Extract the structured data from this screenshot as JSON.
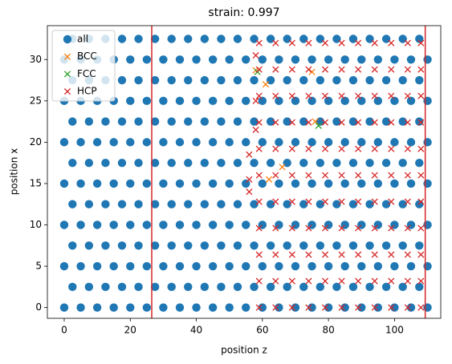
{
  "chart_data": {
    "type": "scatter",
    "title": "strain: 0.997",
    "x_label": "position z",
    "y_label": "position x",
    "xlim": [
      -5.1,
      114
    ],
    "ylim": [
      -1.3,
      34.1
    ],
    "xticks": [
      0,
      20,
      40,
      60,
      80,
      100
    ],
    "yticks": [
      0,
      5,
      10,
      15,
      20,
      25,
      30
    ],
    "legend": "upper left",
    "vlines": [
      26.5,
      109.3
    ],
    "vline_color": "#d62728",
    "series": [
      {
        "name": "all",
        "marker": "o",
        "color": "#1f77b4",
        "x": [
          0,
          5,
          10,
          15,
          20,
          25,
          30,
          35,
          40,
          45,
          50,
          55,
          60,
          65,
          70,
          75,
          80,
          85,
          90,
          95,
          100,
          105,
          110,
          2.5,
          7.5,
          12.5,
          17.5,
          22.5,
          27.5,
          32.5,
          37.5,
          42.5,
          47.5,
          52.5,
          57.5,
          62.5,
          67.5,
          72.5,
          77.5,
          82.5,
          87.5,
          92.5,
          97.5,
          102.5,
          107.5,
          0,
          5,
          10,
          15,
          20,
          25,
          30,
          35,
          40,
          45,
          50,
          55,
          60,
          65,
          70,
          75,
          80,
          85,
          90,
          95,
          100,
          105,
          110,
          2.5,
          7.5,
          12.5,
          17.5,
          22.5,
          27.5,
          32.5,
          37.5,
          42.5,
          47.5,
          52.5,
          57.5,
          62.5,
          67.5,
          72.5,
          77.5,
          82.5,
          87.5,
          92.5,
          97.5,
          102.5,
          107.5,
          0,
          5,
          10,
          15,
          20,
          25,
          30,
          35,
          40,
          45,
          50,
          55,
          60,
          65,
          70,
          75,
          80,
          85,
          90,
          95,
          100,
          105,
          110,
          2.5,
          7.5,
          12.5,
          17.5,
          22.5,
          27.5,
          32.5,
          37.5,
          42.5,
          47.5,
          52.5,
          57.5,
          62.5,
          67.5,
          72.5,
          77.5,
          82.5,
          87.5,
          92.5,
          97.5,
          102.5,
          107.5,
          0,
          5,
          10,
          15,
          20,
          25,
          30,
          35,
          40,
          45,
          50,
          55,
          60,
          65,
          70,
          75,
          80,
          85,
          90,
          95,
          100,
          105,
          110,
          2.5,
          7.5,
          12.5,
          17.5,
          22.5,
          27.5,
          32.5,
          37.5,
          42.5,
          47.5,
          52.5,
          57.5,
          62.5,
          67.5,
          72.5,
          77.5,
          82.5,
          87.5,
          92.5,
          97.5,
          102.5,
          107.5,
          0,
          5,
          10,
          15,
          20,
          25,
          30,
          35,
          40,
          45,
          50,
          55,
          60,
          65,
          70,
          75,
          80,
          85,
          90,
          95,
          100,
          105,
          110,
          2.5,
          7.5,
          12.5,
          17.5,
          22.5,
          27.5,
          32.5,
          37.5,
          42.5,
          47.5,
          52.5,
          57.5,
          62.5,
          67.5,
          72.5,
          77.5,
          82.5,
          87.5,
          92.5,
          97.5,
          102.5,
          107.5,
          0,
          5,
          10,
          15,
          20,
          25,
          30,
          35,
          40,
          45,
          50,
          55,
          60,
          65,
          70,
          75,
          80,
          85,
          90,
          95,
          100,
          105,
          110,
          2.5,
          7.5,
          12.5,
          17.5,
          22.5,
          27.5,
          32.5,
          37.5,
          42.5,
          47.5,
          52.5,
          57.5,
          62.5,
          67.5,
          72.5,
          77.5,
          82.5,
          87.5,
          92.5,
          97.5,
          102.5,
          107.5,
          0,
          5,
          10,
          15,
          20,
          25,
          30,
          35,
          40,
          45,
          50,
          55,
          60,
          65,
          70,
          75,
          80,
          85,
          90,
          95,
          100,
          105,
          110,
          2.5,
          7.5,
          12.5,
          17.5,
          22.5,
          27.5,
          32.5,
          37.5,
          42.5,
          47.5,
          52.5,
          57.5,
          62.5,
          67.5,
          72.5,
          77.5,
          82.5,
          87.5,
          92.5,
          97.5,
          102.5,
          107.5
        ],
        "values": [
          0,
          0,
          0,
          0,
          0,
          0,
          0,
          0,
          0,
          0,
          0,
          0,
          0,
          0,
          0,
          0,
          0,
          0,
          0,
          0,
          0,
          0,
          0,
          2.5,
          2.5,
          2.5,
          2.5,
          2.5,
          2.5,
          2.5,
          2.5,
          2.5,
          2.5,
          2.5,
          2.5,
          2.5,
          2.5,
          2.5,
          2.5,
          2.5,
          2.5,
          2.5,
          2.5,
          2.5,
          2.5,
          5,
          5,
          5,
          5,
          5,
          5,
          5,
          5,
          5,
          5,
          5,
          5,
          5,
          5,
          5,
          5,
          5,
          5,
          5,
          5,
          5,
          5,
          5,
          7.5,
          7.5,
          7.5,
          7.5,
          7.5,
          7.5,
          7.5,
          7.5,
          7.5,
          7.5,
          7.5,
          7.5,
          7.5,
          7.5,
          7.5,
          7.5,
          7.5,
          7.5,
          7.5,
          7.5,
          7.5,
          7.5,
          10,
          10,
          10,
          10,
          10,
          10,
          10,
          10,
          10,
          10,
          10,
          10,
          10,
          10,
          10,
          10,
          10,
          10,
          10,
          10,
          10,
          10,
          10,
          12.5,
          12.5,
          12.5,
          12.5,
          12.5,
          12.5,
          12.5,
          12.5,
          12.5,
          12.5,
          12.5,
          12.5,
          12.5,
          12.5,
          12.5,
          12.5,
          12.5,
          12.5,
          12.5,
          12.5,
          12.5,
          12.5,
          15,
          15,
          15,
          15,
          15,
          15,
          15,
          15,
          15,
          15,
          15,
          15,
          15,
          15,
          15,
          15,
          15,
          15,
          15,
          15,
          15,
          15,
          15,
          17.5,
          17.5,
          17.5,
          17.5,
          17.5,
          17.5,
          17.5,
          17.5,
          17.5,
          17.5,
          17.5,
          17.5,
          17.5,
          17.5,
          17.5,
          17.5,
          17.5,
          17.5,
          17.5,
          17.5,
          17.5,
          17.5,
          20,
          20,
          20,
          20,
          20,
          20,
          20,
          20,
          20,
          20,
          20,
          20,
          20,
          20,
          20,
          20,
          20,
          20,
          20,
          20,
          20,
          20,
          20,
          22.5,
          22.5,
          22.5,
          22.5,
          22.5,
          22.5,
          22.5,
          22.5,
          22.5,
          22.5,
          22.5,
          22.5,
          22.5,
          22.5,
          22.5,
          22.5,
          22.5,
          22.5,
          22.5,
          22.5,
          22.5,
          22.5,
          25,
          25,
          25,
          25,
          25,
          25,
          25,
          25,
          25,
          25,
          25,
          25,
          25,
          25,
          25,
          25,
          25,
          25,
          25,
          25,
          25,
          25,
          25,
          27.5,
          27.5,
          27.5,
          27.5,
          27.5,
          27.5,
          27.5,
          27.5,
          27.5,
          27.5,
          27.5,
          27.5,
          27.5,
          27.5,
          27.5,
          27.5,
          27.5,
          27.5,
          27.5,
          27.5,
          27.5,
          27.5,
          30,
          30,
          30,
          30,
          30,
          30,
          30,
          30,
          30,
          30,
          30,
          30,
          30,
          30,
          30,
          30,
          30,
          30,
          30,
          30,
          30,
          30,
          30,
          32.5,
          32.5,
          32.5,
          32.5,
          32.5,
          32.5,
          32.5,
          32.5,
          32.5,
          32.5,
          32.5,
          32.5,
          32.5,
          32.5,
          32.5,
          32.5,
          32.5,
          32.5,
          32.5,
          32.5,
          32.5,
          32.5
        ]
      },
      {
        "name": "BCC",
        "marker": "x",
        "color": "#ff7f0e",
        "x": [
          58,
          61,
          62,
          66,
          76,
          75
        ],
        "values": [
          28.7,
          27,
          15.5,
          17,
          22.5,
          28.5
        ]
      },
      {
        "name": "FCC",
        "marker": "x",
        "color": "#2ca02c",
        "x": [
          58.5,
          77
        ],
        "values": [
          28.5,
          22
        ]
      },
      {
        "name": "HCP",
        "marker": "x",
        "color": "#d62728",
        "x": [
          59,
          64,
          69,
          74,
          79,
          84,
          89,
          94,
          99,
          104,
          108,
          59,
          64,
          69,
          74,
          79,
          84,
          89,
          94,
          99,
          104,
          108,
          59,
          64,
          69,
          74,
          79,
          84,
          89,
          94,
          99,
          104,
          108,
          59,
          64,
          69,
          74,
          79,
          84,
          89,
          94,
          99,
          104,
          108,
          59,
          64,
          69,
          74,
          79,
          84,
          89,
          94,
          99,
          104,
          108,
          59,
          64,
          69,
          74,
          79,
          84,
          89,
          94,
          99,
          104,
          108,
          59,
          64,
          69,
          74,
          79,
          84,
          89,
          94,
          99,
          104,
          108,
          59,
          64,
          69,
          74,
          79,
          84,
          89,
          94,
          99,
          104,
          108,
          59,
          64,
          69,
          74,
          79,
          84,
          89,
          94,
          99,
          104,
          108,
          59,
          64,
          69,
          74,
          79,
          84,
          89,
          94,
          99,
          104,
          108,
          59,
          64,
          69,
          74,
          79,
          84,
          89,
          94,
          99,
          104,
          108,
          56,
          56,
          56,
          58,
          58,
          58
        ],
        "values": [
          0,
          0,
          0,
          0,
          0,
          0,
          0,
          0,
          0,
          0,
          0,
          3.2,
          3.2,
          3.2,
          3.2,
          3.2,
          3.2,
          3.2,
          3.2,
          3.2,
          3.2,
          3.2,
          6.4,
          6.4,
          6.4,
          6.4,
          6.4,
          6.4,
          6.4,
          6.4,
          6.4,
          6.4,
          6.4,
          9.6,
          9.6,
          9.6,
          9.6,
          9.6,
          9.6,
          9.6,
          9.6,
          9.6,
          9.6,
          9.6,
          12.8,
          12.8,
          12.8,
          12.8,
          12.8,
          12.8,
          12.8,
          12.8,
          12.8,
          12.8,
          12.8,
          16,
          16,
          16,
          16,
          16,
          16,
          16,
          16,
          16,
          16,
          16,
          19.2,
          19.2,
          19.2,
          19.2,
          19.2,
          19.2,
          19.2,
          19.2,
          19.2,
          19.2,
          19.2,
          22.4,
          22.4,
          22.4,
          22.4,
          22.4,
          22.4,
          22.4,
          22.4,
          22.4,
          22.4,
          22.4,
          25.6,
          25.6,
          25.6,
          25.6,
          25.6,
          25.6,
          25.6,
          25.6,
          25.6,
          25.6,
          25.6,
          28.8,
          28.8,
          28.8,
          28.8,
          28.8,
          28.8,
          28.8,
          28.8,
          28.8,
          28.8,
          28.8,
          32,
          32,
          32,
          32,
          32,
          32,
          32,
          32,
          32,
          32,
          32,
          15.5,
          14,
          18.5,
          30.5,
          25,
          21.5
        ]
      }
    ]
  }
}
